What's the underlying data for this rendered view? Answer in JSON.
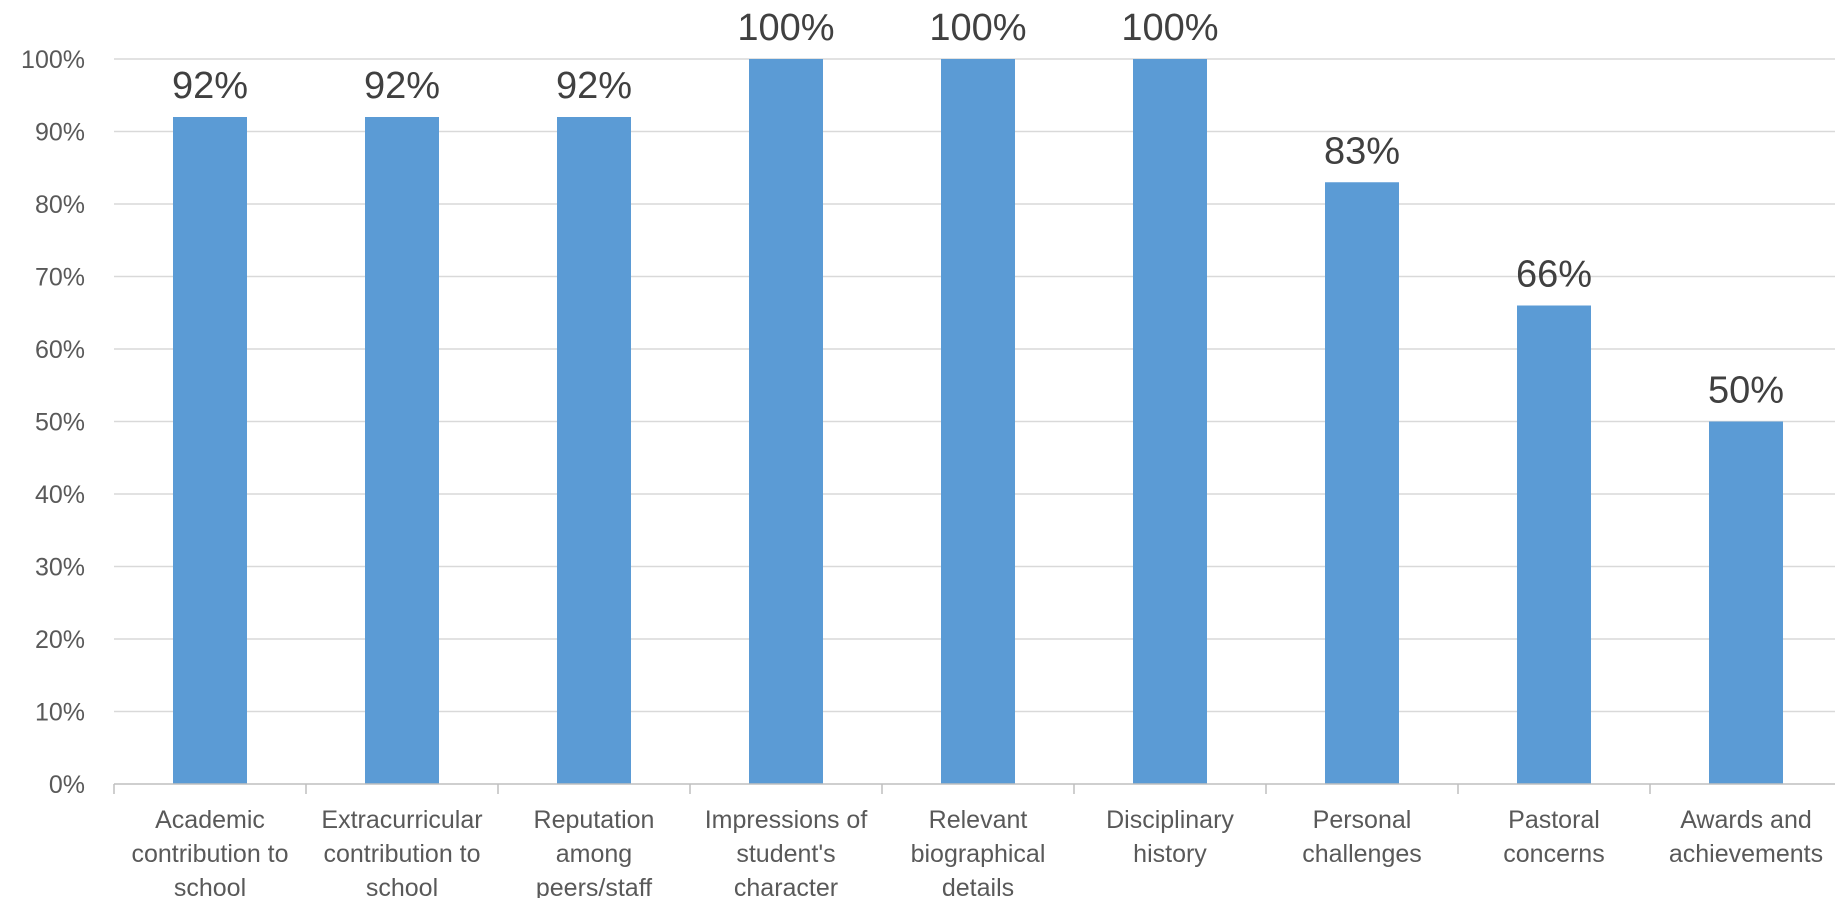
{
  "chart_data": {
    "type": "bar",
    "categories": [
      [
        "Academic",
        "contribution to",
        "school"
      ],
      [
        "Extracurricular",
        "contribution to",
        "school"
      ],
      [
        "Reputation",
        "among",
        "peers/staff"
      ],
      [
        "Impressions of",
        "student's",
        "character"
      ],
      [
        "Relevant",
        "biographical",
        "details"
      ],
      [
        "Disciplinary",
        "history"
      ],
      [
        "Personal",
        "challenges"
      ],
      [
        "Pastoral",
        "concerns"
      ],
      [
        "Awards and",
        "achievements"
      ]
    ],
    "values": [
      92,
      92,
      92,
      100,
      100,
      100,
      83,
      66,
      50
    ],
    "data_labels": [
      "92%",
      "92%",
      "92%",
      "100%",
      "100%",
      "100%",
      "83%",
      "66%",
      "50%"
    ],
    "y_ticks": [
      "0%",
      "10%",
      "20%",
      "30%",
      "40%",
      "50%",
      "60%",
      "70%",
      "80%",
      "90%",
      "100%"
    ],
    "ylim": [
      0,
      100
    ],
    "grid": true,
    "bar_color": "#5b9bd5"
  }
}
